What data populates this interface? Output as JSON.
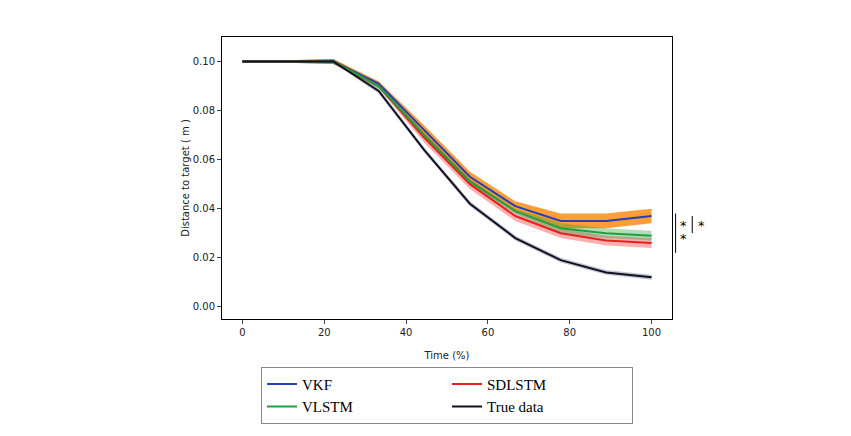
{
  "chart_data": {
    "type": "line",
    "x_label": "Time (%)",
    "y_label": "Distance to target ( m )",
    "x": [
      0,
      11.1,
      22.2,
      33.3,
      44.4,
      55.6,
      66.7,
      77.8,
      88.9,
      100
    ],
    "series": [
      {
        "name": "VKF",
        "color": "#2340b8",
        "values": [
          0.1,
          0.1,
          0.1,
          0.091,
          0.072,
          0.053,
          0.041,
          0.035,
          0.035,
          0.037
        ],
        "error": [
          0.0005,
          0.0005,
          0.001,
          0.001,
          0.002,
          0.002,
          0.002,
          0.003,
          0.003,
          0.003
        ]
      },
      {
        "name": "SDLSTM",
        "color": "#e8201c",
        "values": [
          0.1,
          0.1,
          0.1,
          0.09,
          0.069,
          0.05,
          0.037,
          0.03,
          0.027,
          0.026
        ],
        "error": [
          0.0005,
          0.0005,
          0.001,
          0.001,
          0.002,
          0.002,
          0.002,
          0.002,
          0.002,
          0.002
        ]
      },
      {
        "name": "VLSTM",
        "color": "#1fa03a",
        "values": [
          0.1,
          0.1,
          0.1,
          0.09,
          0.07,
          0.051,
          0.039,
          0.032,
          0.03,
          0.029
        ],
        "error": [
          0.0005,
          0.0005,
          0.001,
          0.001,
          0.001,
          0.001,
          0.001,
          0.002,
          0.002,
          0.002
        ]
      },
      {
        "name": "True data",
        "color": "#111122",
        "values": [
          0.1,
          0.1,
          0.1,
          0.088,
          0.064,
          0.042,
          0.028,
          0.019,
          0.014,
          0.012
        ],
        "error": [
          0.0005,
          0.0005,
          0.0005,
          0.001,
          0.001,
          0.001,
          0.001,
          0.001,
          0.001,
          0.001
        ]
      }
    ],
    "xlim": [
      -5,
      105
    ],
    "xticks": [
      0,
      20,
      40,
      60,
      80,
      100
    ],
    "ylim": [
      -0.005,
      0.11
    ],
    "yticks": [
      {
        "value": 0,
        "label": "0.00"
      },
      {
        "value": 0.02,
        "label": "0.02"
      },
      {
        "value": 0.04,
        "label": "0.04"
      },
      {
        "value": 0.06,
        "label": "0.06"
      },
      {
        "value": 0.08,
        "label": "0.08"
      },
      {
        "value": 0.1,
        "label": "0.10"
      }
    ],
    "annotations": [
      {
        "text": "*",
        "y": 0.033
      },
      {
        "text": "*",
        "y": 0.028
      },
      {
        "text": "*",
        "y": 0.033
      }
    ],
    "grid": false,
    "legend": "bottom"
  }
}
